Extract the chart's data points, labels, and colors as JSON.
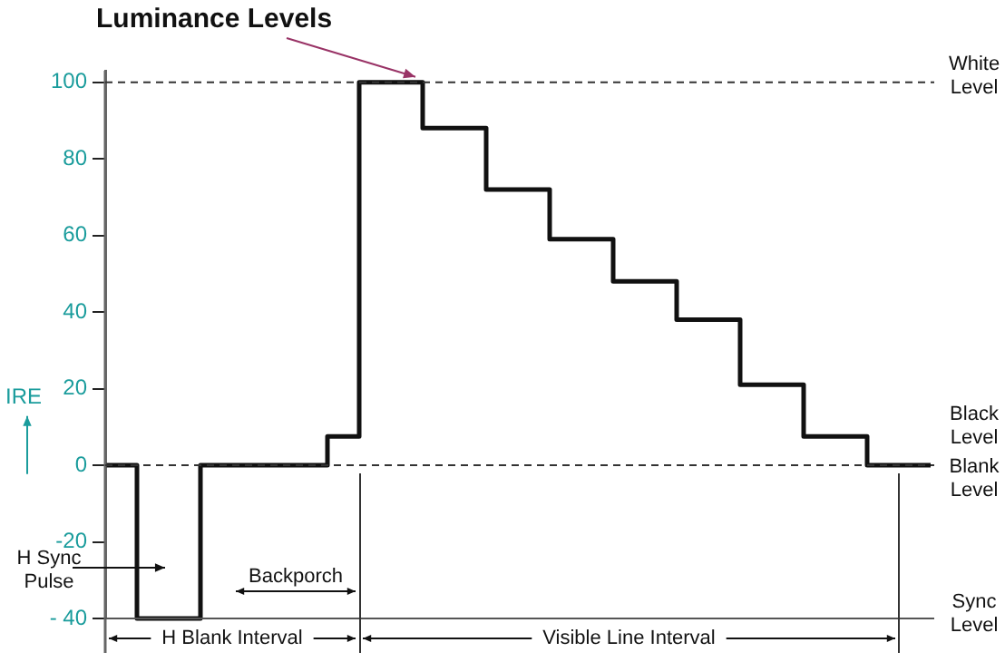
{
  "chart_data": {
    "type": "step",
    "ylabel": "IRE",
    "categories": [
      null,
      null,
      null,
      null,
      null,
      null,
      null,
      null,
      null,
      null,
      null,
      null,
      null,
      null,
      null,
      null,
      null,
      null,
      null,
      null,
      null,
      null,
      null,
      null,
      null,
      null,
      null
    ],
    "series": [
      {
        "color": "#111111",
        "values": [
          0,
          0,
          -40,
          -40,
          0,
          0,
          0,
          0,
          7.5,
          100,
          100,
          88,
          88,
          72,
          72,
          59,
          59,
          48,
          48,
          38,
          38,
          21,
          21,
          7.5,
          7.5,
          0,
          0
        ]
      }
    ],
    "ylim": [
      -40,
      103
    ],
    "yticks": [
      100,
      80,
      60,
      40,
      20,
      0,
      -20,
      {
        "value": -40,
        "label": "- 40"
      }
    ],
    "ref_lines": [
      {
        "axis": "y",
        "value": 100,
        "label": "White Level",
        "line_style": "dashed",
        "color": "#333333"
      },
      {
        "axis": "y",
        "value": 0,
        "label": "Blank Level",
        "line_style": "dashed",
        "color": "#333333"
      },
      {
        "axis": "y",
        "value": -40,
        "label": "Sync Level",
        "line_style": "solid",
        "color": "#555555"
      }
    ],
    "annotations": [
      "Luminance Levels",
      "H Sync Pulse",
      "Black Level",
      "Backporch",
      "H Blank Interval",
      "Visible Line Interval"
    ],
    "grid": false,
    "legend": false,
    "tick_labels": "y",
    "marker": "none",
    "line_style": "solid"
  }
}
